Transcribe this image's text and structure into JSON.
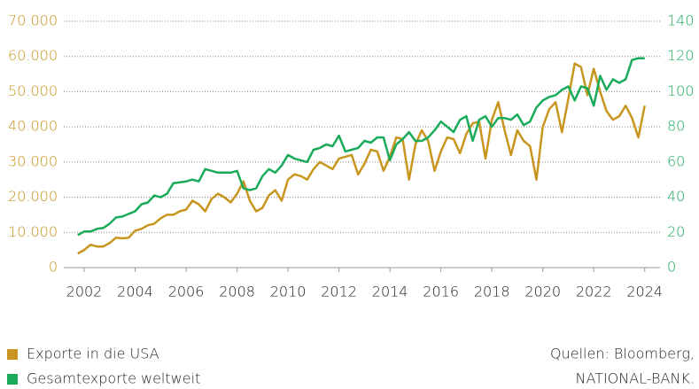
{
  "chart_data": {
    "type": "line",
    "x": [
      2001.75,
      2002,
      2002.25,
      2002.5,
      2002.75,
      2003,
      2003.25,
      2003.5,
      2003.75,
      2004,
      2004.25,
      2004.5,
      2004.75,
      2005,
      2005.25,
      2005.5,
      2005.75,
      2006,
      2006.25,
      2006.5,
      2006.75,
      2007,
      2007.25,
      2007.5,
      2007.75,
      2008,
      2008.25,
      2008.5,
      2008.75,
      2009,
      2009.25,
      2009.5,
      2009.75,
      2010,
      2010.25,
      2010.5,
      2010.75,
      2011,
      2011.25,
      2011.5,
      2011.75,
      2012,
      2012.25,
      2012.5,
      2012.75,
      2013,
      2013.25,
      2013.5,
      2013.75,
      2014,
      2014.25,
      2014.5,
      2014.75,
      2015,
      2015.25,
      2015.5,
      2015.75,
      2016,
      2016.25,
      2016.5,
      2016.75,
      2017,
      2017.25,
      2017.5,
      2017.75,
      2018,
      2018.25,
      2018.5,
      2018.75,
      2019,
      2019.25,
      2019.5,
      2019.75,
      2020,
      2020.25,
      2020.5,
      2020.75,
      2021,
      2021.25,
      2021.5,
      2021.75,
      2022,
      2022.25,
      2022.5,
      2022.75,
      2023,
      2023.25,
      2023.5,
      2023.75,
      2024
    ],
    "series": [
      {
        "name": "Exporte in die USA",
        "color": "#c8961e",
        "axis": "y",
        "values": [
          4000,
          5000,
          6500,
          6000,
          6000,
          7000,
          8500,
          8300,
          8500,
          10500,
          11000,
          12000,
          12500,
          14000,
          15000,
          15000,
          16000,
          16500,
          19000,
          18000,
          16000,
          19500,
          21000,
          20000,
          18500,
          21000,
          24500,
          19000,
          16000,
          17000,
          20500,
          22000,
          19000,
          25000,
          26500,
          26000,
          25000,
          28000,
          30000,
          29000,
          28000,
          31000,
          31500,
          32000,
          26500,
          29500,
          33500,
          33000,
          27500,
          31500,
          37000,
          36500,
          25000,
          35000,
          39000,
          36000,
          27500,
          33000,
          37000,
          36500,
          32500,
          38000,
          41000,
          41500,
          31000,
          42000,
          47000,
          39000,
          32000,
          39000,
          36000,
          34500,
          25000,
          40000,
          45000,
          47000,
          38500,
          48000,
          58000,
          57000,
          49000,
          56500,
          50000,
          44500,
          42000,
          43000,
          46000,
          42500,
          37000,
          46000
        ]
      },
      {
        "name": "Gesamtexporte weltweit",
        "color": "#1aab5a",
        "axis": "y2",
        "values": [
          18.5,
          20.5,
          20.5,
          22,
          22.5,
          25,
          28.5,
          29,
          30.5,
          32,
          36,
          37,
          41,
          40,
          42,
          48,
          48.5,
          49,
          50,
          49,
          56,
          55,
          54,
          54,
          54,
          55,
          45,
          44,
          45,
          52,
          56,
          54,
          58,
          64,
          62,
          61,
          60,
          67,
          68,
          70,
          69,
          75,
          66,
          67,
          68,
          72,
          71,
          74,
          74,
          61,
          70,
          73,
          77,
          72,
          72,
          74,
          78,
          83,
          80,
          77,
          84,
          86,
          72,
          84,
          86,
          80,
          85,
          85,
          84,
          87,
          81,
          83,
          91,
          95,
          97,
          98,
          101,
          103,
          95,
          103,
          102,
          92,
          109,
          101,
          107,
          105,
          107,
          118,
          119,
          119
        ]
      }
    ],
    "xlim": [
      2001.2,
      2024.6
    ],
    "xticks": [
      2002,
      2004,
      2006,
      2008,
      2010,
      2012,
      2014,
      2016,
      2018,
      2020,
      2022,
      2024
    ],
    "ylim": [
      0,
      70000
    ],
    "yticks": [
      0,
      {
        "value": 10000,
        "label": "10.000"
      },
      {
        "value": 20000,
        "label": "20.000"
      },
      {
        "value": 30000,
        "label": "30.000"
      },
      {
        "value": 40000,
        "label": "40.000"
      },
      {
        "value": 50000,
        "label": "50.000"
      },
      {
        "value": 60000,
        "label": "60.000"
      },
      {
        "value": 70000,
        "label": "70.000"
      }
    ],
    "y2lim": [
      0,
      140
    ],
    "y2ticks": [
      0,
      20,
      40,
      60,
      80,
      100,
      120,
      140
    ],
    "grid": true,
    "source": [
      "Quellen: Bloomberg,",
      "NATIONAL-BANK."
    ]
  }
}
